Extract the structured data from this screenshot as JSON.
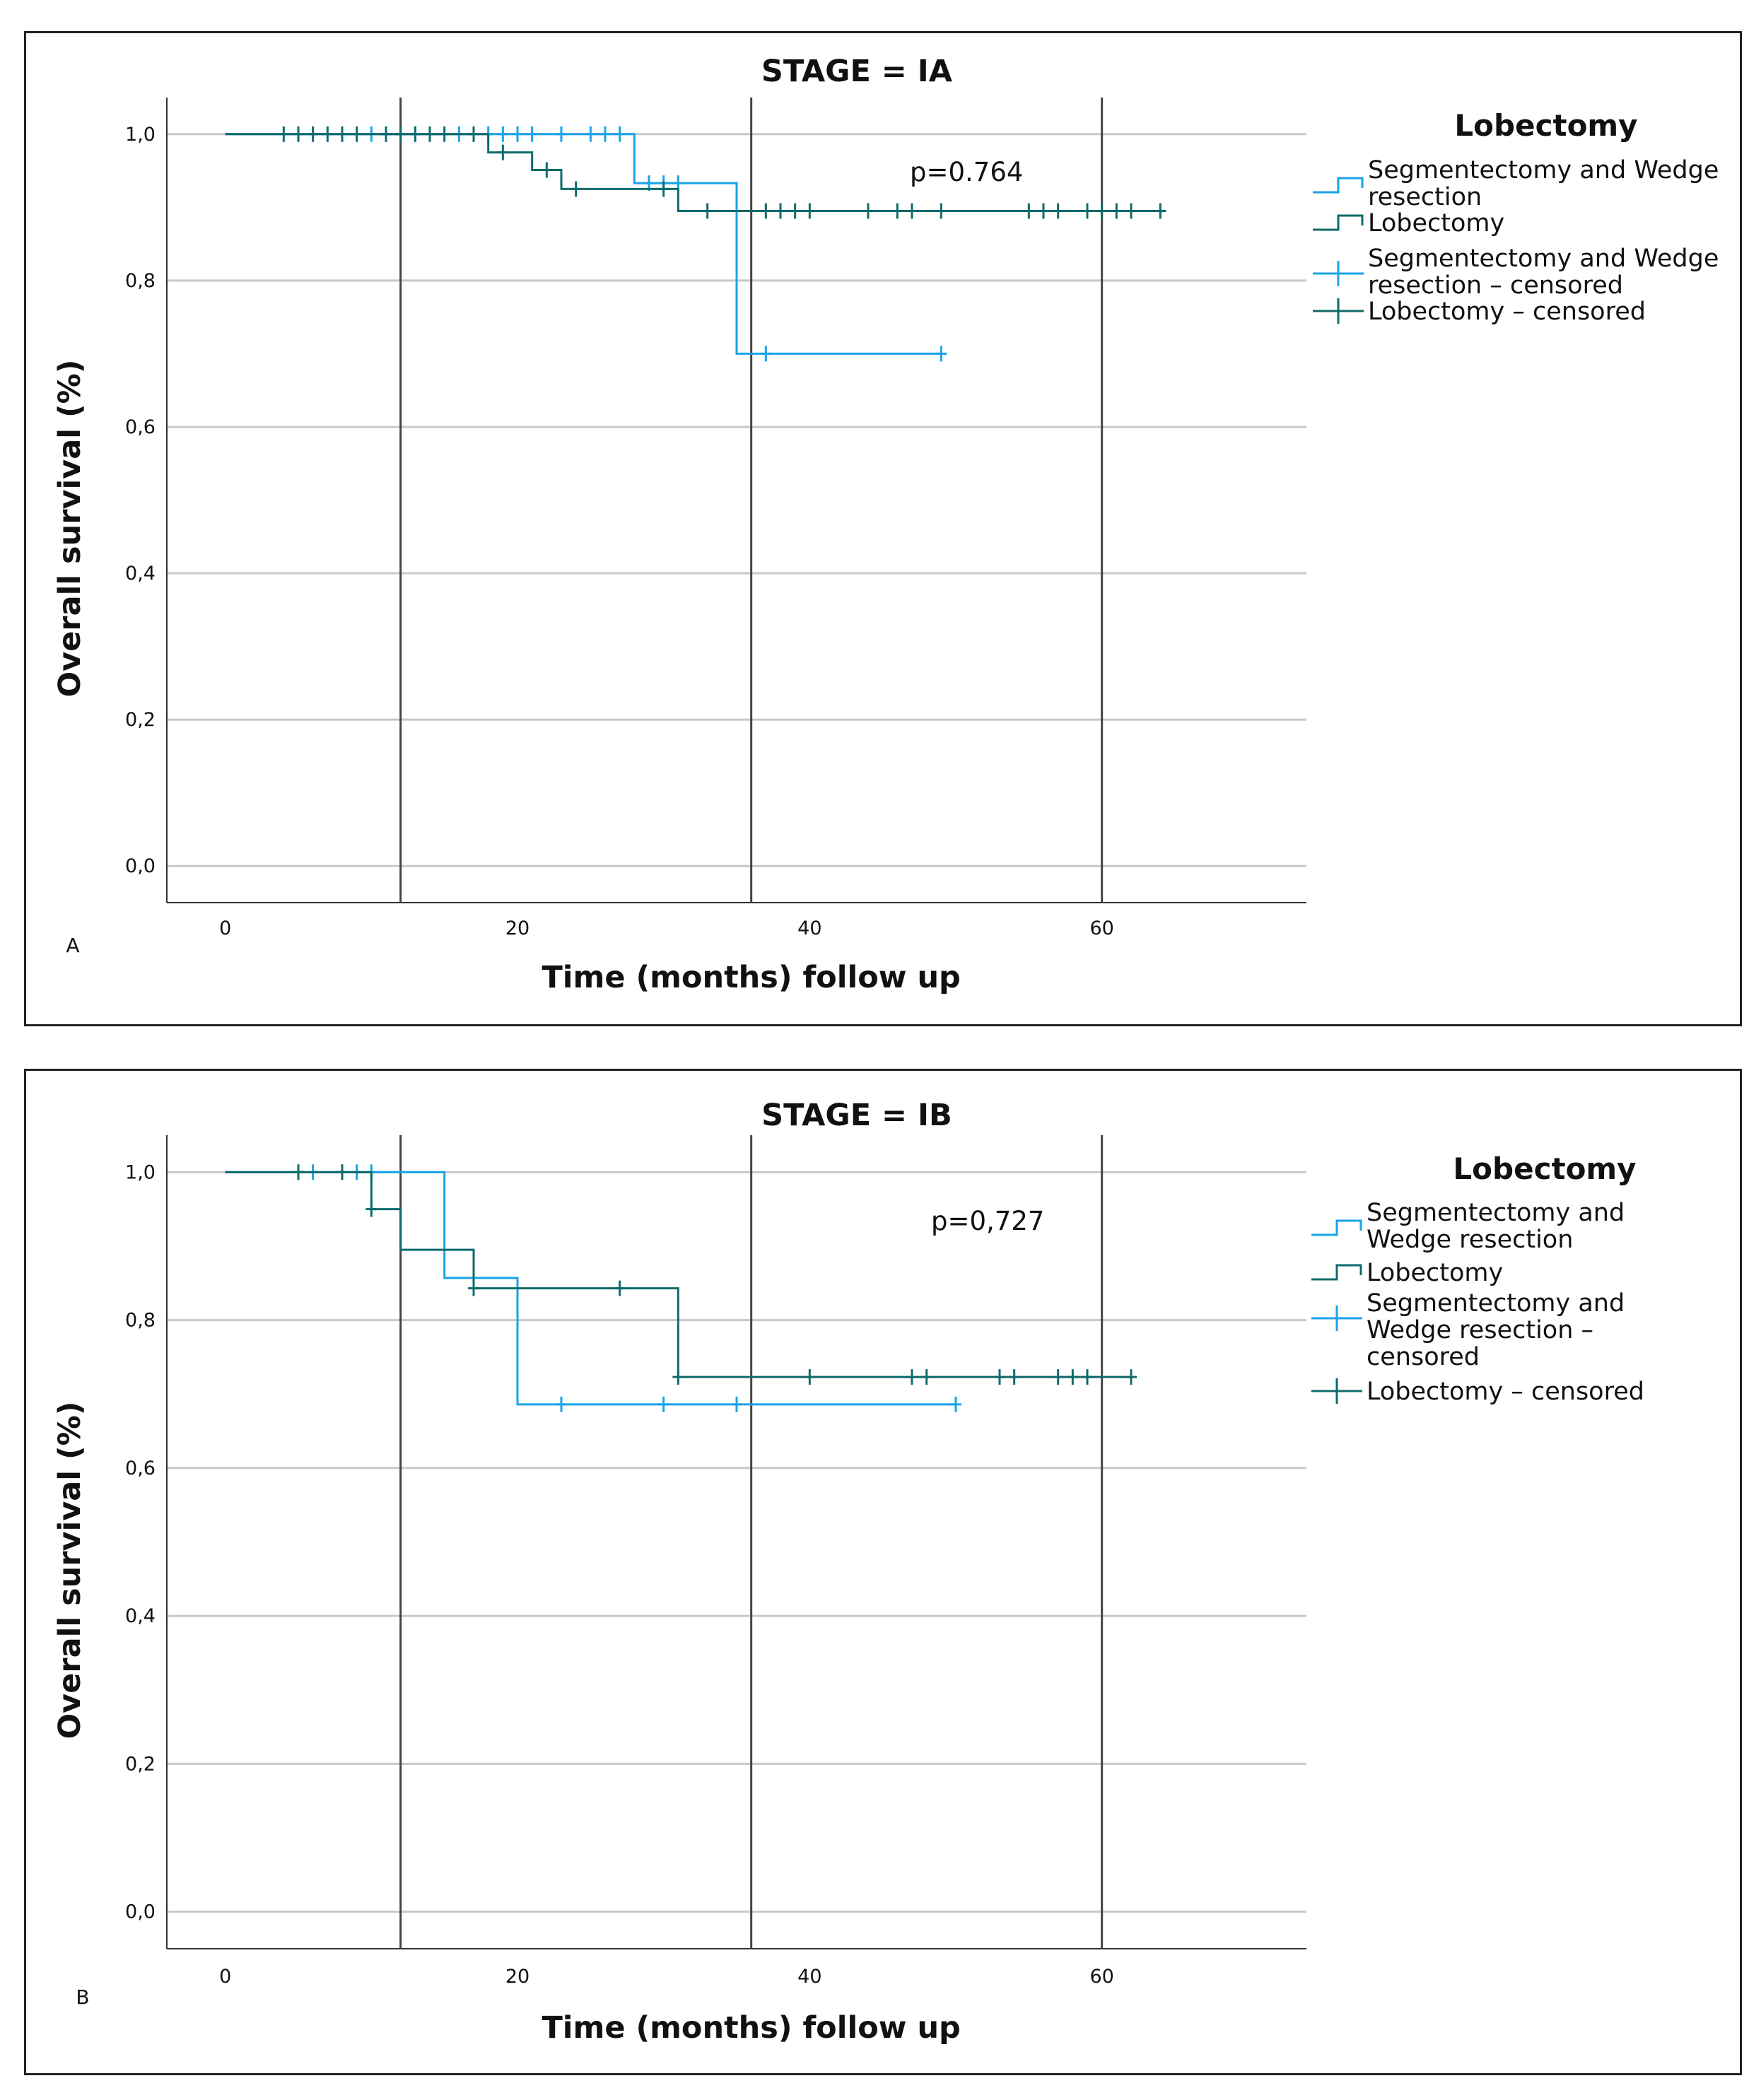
{
  "chart_data": [
    {
      "type": "line",
      "panel_label": "A",
      "title": "STAGE = IA",
      "xlabel": "Time (months) follow up",
      "ylabel": "Overall survival (%)",
      "xlim": [
        -4,
        74
      ],
      "ylim": [
        -0.05,
        1.05
      ],
      "x_ticks": [
        "0",
        "20",
        "40",
        "60"
      ],
      "y_ticks": [
        "0,0",
        "0,2",
        "0,4",
        "0,6",
        "0,8",
        "1,0"
      ],
      "vertical_lines": [
        12,
        36,
        60
      ],
      "grid": "horizontal",
      "annotation": "p=0.764",
      "legend": {
        "title": "Lobectomy",
        "placement": "right",
        "items": [
          {
            "label_lines": [
              "Segmentectomy and Wedge",
              "resection"
            ],
            "kind": "step",
            "color": "#1aa3e8"
          },
          {
            "label_lines": [
              "Lobectomy"
            ],
            "kind": "step",
            "color": "#0f6b6b"
          },
          {
            "label_lines": [
              "Segmentectomy and Wedge",
              "resection – censored"
            ],
            "kind": "censor",
            "color": "#1aa3e8"
          },
          {
            "label_lines": [
              "Lobectomy – censored"
            ],
            "kind": "censor",
            "color": "#0f6b6b"
          }
        ]
      },
      "series": [
        {
          "name": "Segmentectomy and Wedge resection",
          "color": "#1aa3e8",
          "steps": [
            [
              0,
              1.0
            ],
            [
              28,
              0.933
            ],
            [
              35,
              0.7
            ],
            [
              49,
              0.7
            ]
          ],
          "censored": [
            [
              10,
              1.0
            ],
            [
              11,
              1.0
            ],
            [
              12,
              1.0
            ],
            [
              13,
              1.0
            ],
            [
              16,
              1.0
            ],
            [
              17,
              1.0
            ],
            [
              18,
              1.0
            ],
            [
              19,
              1.0
            ],
            [
              20,
              1.0
            ],
            [
              21,
              1.0
            ],
            [
              23,
              1.0
            ],
            [
              25,
              1.0
            ],
            [
              26,
              1.0
            ],
            [
              27,
              1.0
            ],
            [
              29,
              0.933
            ],
            [
              30,
              0.933
            ],
            [
              31,
              0.933
            ],
            [
              37,
              0.7
            ],
            [
              49,
              0.7
            ]
          ]
        },
        {
          "name": "Lobectomy",
          "color": "#0f6b6b",
          "steps": [
            [
              0,
              1.0
            ],
            [
              18,
              0.975
            ],
            [
              21,
              0.951
            ],
            [
              23,
              0.925
            ],
            [
              31,
              0.895
            ],
            [
              64,
              0.895
            ]
          ],
          "censored": [
            [
              4,
              1.0
            ],
            [
              5,
              1.0
            ],
            [
              6,
              1.0
            ],
            [
              7,
              1.0
            ],
            [
              8,
              1.0
            ],
            [
              9,
              1.0
            ],
            [
              11,
              1.0
            ],
            [
              12,
              1.0
            ],
            [
              13,
              1.0
            ],
            [
              14,
              1.0
            ],
            [
              15,
              1.0
            ],
            [
              17,
              1.0
            ],
            [
              19,
              0.975
            ],
            [
              22,
              0.951
            ],
            [
              24,
              0.925
            ],
            [
              30,
              0.925
            ],
            [
              33,
              0.895
            ],
            [
              37,
              0.895
            ],
            [
              38,
              0.895
            ],
            [
              39,
              0.895
            ],
            [
              40,
              0.895
            ],
            [
              44,
              0.895
            ],
            [
              46,
              0.895
            ],
            [
              47,
              0.895
            ],
            [
              49,
              0.895
            ],
            [
              55,
              0.895
            ],
            [
              56,
              0.895
            ],
            [
              57,
              0.895
            ],
            [
              59,
              0.895
            ],
            [
              60,
              0.895
            ],
            [
              61,
              0.895
            ],
            [
              62,
              0.895
            ],
            [
              64,
              0.895
            ]
          ]
        }
      ]
    },
    {
      "type": "line",
      "panel_label": "B",
      "title": "STAGE = IB",
      "xlabel": "Time (months) follow up",
      "ylabel": "Overall survival (%)",
      "xlim": [
        -4,
        74
      ],
      "ylim": [
        -0.05,
        1.05
      ],
      "x_ticks": [
        "0",
        "20",
        "40",
        "60"
      ],
      "y_ticks": [
        "0,0",
        "0,2",
        "0,4",
        "0,6",
        "0,8",
        "1,0"
      ],
      "vertical_lines": [
        12,
        36,
        60
      ],
      "grid": "horizontal",
      "annotation": "p=0,727",
      "legend": {
        "title": "Lobectomy",
        "placement": "right",
        "items": [
          {
            "label_lines": [
              "Segmentectomy and",
              "Wedge resection"
            ],
            "kind": "step",
            "color": "#1aa3e8"
          },
          {
            "label_lines": [
              "Lobectomy"
            ],
            "kind": "step",
            "color": "#0f6b6b"
          },
          {
            "label_lines": [
              "Segmentectomy and",
              "Wedge resection –",
              "censored"
            ],
            "kind": "censor",
            "color": "#1aa3e8"
          },
          {
            "label_lines": [
              "Lobectomy – censored"
            ],
            "kind": "censor",
            "color": "#0f6b6b"
          }
        ]
      },
      "series": [
        {
          "name": "Segmentectomy and Wedge resection",
          "color": "#1aa3e8",
          "steps": [
            [
              0,
              1.0
            ],
            [
              15,
              0.857
            ],
            [
              20,
              0.686
            ],
            [
              50,
              0.686
            ]
          ],
          "censored": [
            [
              5,
              1.0
            ],
            [
              6,
              1.0
            ],
            [
              8,
              1.0
            ],
            [
              9,
              1.0
            ],
            [
              10,
              1.0
            ],
            [
              17,
              0.857
            ],
            [
              23,
              0.686
            ],
            [
              30,
              0.686
            ],
            [
              35,
              0.686
            ],
            [
              50,
              0.686
            ]
          ]
        },
        {
          "name": "Lobectomy",
          "color": "#0f6b6b",
          "steps": [
            [
              0,
              1.0
            ],
            [
              10,
              0.95
            ],
            [
              12,
              0.895
            ],
            [
              17,
              0.843
            ],
            [
              31,
              0.723
            ],
            [
              62,
              0.723
            ]
          ],
          "censored": [
            [
              5,
              1.0
            ],
            [
              8,
              1.0
            ],
            [
              10,
              0.95
            ],
            [
              17,
              0.843
            ],
            [
              27,
              0.843
            ],
            [
              31,
              0.723
            ],
            [
              40,
              0.723
            ],
            [
              47,
              0.723
            ],
            [
              48,
              0.723
            ],
            [
              53,
              0.723
            ],
            [
              54,
              0.723
            ],
            [
              57,
              0.723
            ],
            [
              58,
              0.723
            ],
            [
              59,
              0.723
            ],
            [
              62,
              0.723
            ]
          ]
        }
      ]
    }
  ]
}
